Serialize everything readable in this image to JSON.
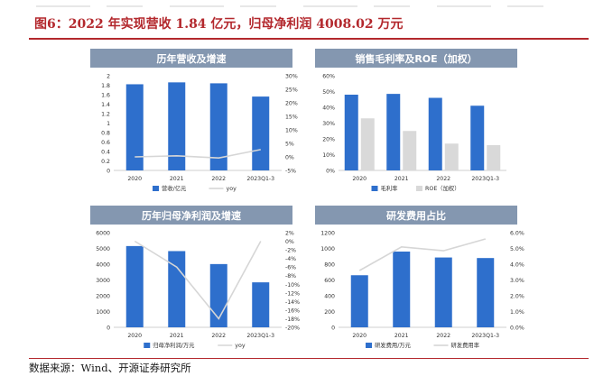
{
  "header": {
    "title": "图6：2022 年实现营收 1.84 亿元，归母净利润 4008.02 万元"
  },
  "footer": {
    "source": "数据来源：Wind、开源证券研究所"
  },
  "colors": {
    "banner": "#8497b0",
    "bar_primary": "#2e6fcc",
    "bar_secondary": "#d9d9d9",
    "line": "#d6d6d6",
    "accent_red": "#b3282d"
  },
  "chart_data": [
    {
      "id": "revenue",
      "type": "bar+line",
      "title": "历年营收及增速",
      "categories": [
        "2020",
        "2021",
        "2022",
        "2023Q1-3"
      ],
      "series": [
        {
          "name": "营收/亿元",
          "kind": "bar",
          "axis": "left",
          "values": [
            1.82,
            1.86,
            1.84,
            1.56
          ]
        },
        {
          "name": "yoy",
          "kind": "line",
          "axis": "right",
          "values": [
            0.0,
            0.4,
            -0.4,
            2.7
          ]
        }
      ],
      "left_axis": {
        "min": 0,
        "max": 2,
        "step": 0.2,
        "ticks": [
          "0",
          "0.2",
          "0.4",
          "0.6",
          "0.8",
          "1",
          "1.2",
          "1.4",
          "1.6",
          "1.8",
          "2"
        ]
      },
      "right_axis": {
        "min": -5,
        "max": 30,
        "step": 5,
        "unit": "%",
        "ticks": [
          "-5%",
          "0%",
          "5%",
          "10%",
          "15%",
          "20%",
          "25%",
          "30%"
        ]
      },
      "legend": [
        "营收/亿元",
        "yoy"
      ]
    },
    {
      "id": "margin",
      "type": "bar",
      "title": "销售毛利率及ROE（加权）",
      "categories": [
        "2020",
        "2021",
        "2022",
        "2023Q1-3"
      ],
      "series": [
        {
          "name": "毛利率",
          "kind": "bar",
          "color": "blue",
          "values": [
            48,
            48.5,
            46,
            41
          ]
        },
        {
          "name": "ROE（加权）",
          "kind": "bar",
          "color": "gray",
          "values": [
            33,
            25,
            17,
            16
          ]
        }
      ],
      "left_axis": {
        "min": 0,
        "max": 60,
        "step": 10,
        "unit": "%",
        "ticks": [
          "0%",
          "10%",
          "20%",
          "30%",
          "40%",
          "50%",
          "60%"
        ]
      },
      "legend": [
        "毛利率",
        "ROE（加权）"
      ]
    },
    {
      "id": "profit",
      "type": "bar+line",
      "title": "历年归母净利润及增速",
      "categories": [
        "2020",
        "2021",
        "2022",
        "2023Q1-3"
      ],
      "series": [
        {
          "name": "归母净利润/万元",
          "kind": "bar",
          "axis": "left",
          "values": [
            5150,
            4830,
            4008.02,
            2850
          ]
        },
        {
          "name": "yoy",
          "kind": "line",
          "axis": "right",
          "values": [
            0,
            -6,
            -18,
            0
          ]
        }
      ],
      "left_axis": {
        "min": 0,
        "max": 6000,
        "step": 1000,
        "ticks": [
          "0",
          "1000",
          "2000",
          "3000",
          "4000",
          "5000",
          "6000"
        ]
      },
      "right_axis": {
        "min": -20,
        "max": 2,
        "step": 2,
        "unit": "%",
        "ticks": [
          "-20%",
          "-18%",
          "-16%",
          "-14%",
          "-12%",
          "-10%",
          "-8%",
          "-6%",
          "-4%",
          "-2%",
          "0%",
          "2%"
        ]
      },
      "legend": [
        "归母净利润/万元",
        "yoy"
      ]
    },
    {
      "id": "rnd",
      "type": "bar+line",
      "title": "研发费用占比",
      "categories": [
        "2020",
        "2021",
        "2022",
        "2023Q1-3"
      ],
      "series": [
        {
          "name": "研发费用/万元",
          "kind": "bar",
          "axis": "left",
          "values": [
            660,
            960,
            885,
            878
          ]
        },
        {
          "name": "研发费用率",
          "kind": "line",
          "axis": "right",
          "values": [
            3.6,
            5.1,
            4.85,
            5.6
          ]
        }
      ],
      "left_axis": {
        "min": 0,
        "max": 1200,
        "step": 200,
        "ticks": [
          "0",
          "200",
          "400",
          "600",
          "800",
          "1000",
          "1200"
        ]
      },
      "right_axis": {
        "min": 0,
        "max": 6,
        "step": 1,
        "unit": "%",
        "ticks": [
          "0.0%",
          "1.0%",
          "2.0%",
          "3.0%",
          "4.0%",
          "5.0%",
          "6.0%"
        ]
      },
      "legend": [
        "研发费用/万元",
        "研发费用率"
      ]
    }
  ]
}
